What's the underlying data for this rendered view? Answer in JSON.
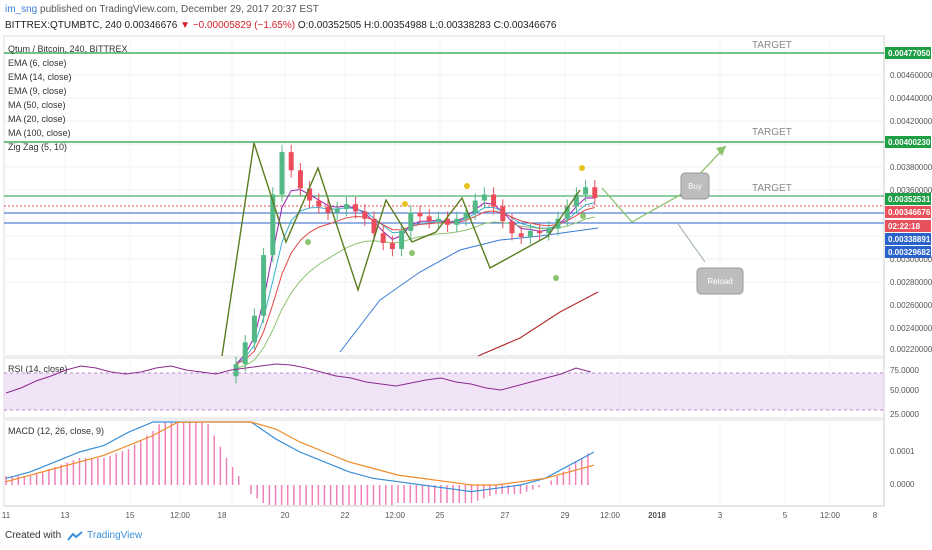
{
  "header": {
    "user": "im_sng",
    "published_text": " published on TradingView.com, December 29, 2017 20:37 EST",
    "symbol_line": "BITTREX:QTUMBTC, 240",
    "last": "0.00346676",
    "change": "▼ −0.00005829 (−1.65%)",
    "ohlc": "O:0.00352505 H:0.00354988 L:0.00338283 C:0.00346676"
  },
  "legend": [
    "Qtum / Bitcoin, 240, BITTREX",
    "EMA (6, close)",
    "EMA (14, close)",
    "EMA (9, close)",
    "MA (50, close)",
    "MA (20, close)",
    "MA (100, close)",
    "Zig Zag (5, 10)"
  ],
  "annotations": {
    "target": "TARGET",
    "buy": "Buy",
    "reload": "Reload"
  },
  "price_axis": {
    "ticks": [
      "0.00460000",
      "0.00440000",
      "0.00420000",
      "0.00380000",
      "0.00360000",
      "0.00300000",
      "0.00280000",
      "0.00260000",
      "0.00240000",
      "0.00220000"
    ],
    "labels": [
      {
        "text": "0.00477050",
        "color": "#1e9e45"
      },
      {
        "text": "0.00400230",
        "color": "#1e9e45"
      },
      {
        "text": "0.00352531",
        "color": "#1e9e45"
      },
      {
        "text": "0.00346676",
        "color": "#e8505b"
      },
      {
        "text": "02:22:18",
        "color": "#e8505b"
      },
      {
        "text": "0.00338891",
        "color": "#2962c9"
      },
      {
        "text": "0.00329682",
        "color": "#2962c9"
      }
    ]
  },
  "rsi": {
    "label": "RSI (14, close)",
    "ticks": [
      "75.0000",
      "50.0000",
      "25.0000"
    ]
  },
  "macd": {
    "label": "MACD (12, 26, close, 9)",
    "ticks": [
      "0.0001",
      "0.0000"
    ]
  },
  "time_axis": [
    "11",
    "13",
    "15",
    "12:00",
    "18",
    "20",
    "22",
    "12:00",
    "25",
    "27",
    "29",
    "12:00",
    "2018",
    "3",
    "5",
    "12:00",
    "8"
  ],
  "footer": {
    "created": "Created with",
    "brand": "TradingView"
  },
  "chart_data": {
    "type": "candlestick",
    "symbol": "QTUMBTC",
    "interval": "240",
    "levels": {
      "target_1": 0.0047705,
      "target_2": 0.0040023,
      "target_3": 0.00352531,
      "last": 0.00346676,
      "support_1": 0.00338891,
      "support_2": 0.00329682
    },
    "close_series": [
      0.0021,
      0.00228,
      0.0025,
      0.003,
      0.0035,
      0.00385,
      0.0037,
      0.00355,
      0.00345,
      0.0034,
      0.00335,
      0.00338,
      0.00342,
      0.00336,
      0.0033,
      0.00318,
      0.0031,
      0.00305,
      0.0032,
      0.00335,
      0.00332,
      0.00328,
      0.0033,
      0.00325,
      0.0033,
      0.00335,
      0.00345,
      0.0035,
      0.0034,
      0.00328,
      0.00318,
      0.00315,
      0.0032,
      0.00318,
      0.00322,
      0.0033,
      0.0034,
      0.0035,
      0.00356,
      0.00347
    ],
    "rsi_series": [
      45,
      50,
      57,
      62,
      68,
      72,
      70,
      66,
      64,
      66,
      70,
      72,
      68,
      66,
      64,
      68,
      70,
      72,
      74,
      73,
      70,
      66,
      62,
      60,
      56,
      54,
      52,
      55,
      58,
      60,
      56,
      54,
      50,
      48,
      52,
      56,
      60,
      64,
      70,
      66
    ],
    "macd_line": [
      2e-05,
      4e-05,
      7e-05,
      0.0001,
      0.00012,
      0.00016,
      0.00021,
      0.00028,
      0.0003,
      0.00026,
      0.0002,
      0.00014,
      0.0001,
      7e-05,
      4e-05,
      2e-05,
      1e-05,
      0.0,
      -1e-05,
      -2e-05,
      -1e-05,
      0.0,
      2e-05,
      6e-05,
      0.0001
    ],
    "signal_line": [
      1e-05,
      3e-05,
      5e-05,
      7e-05,
      9e-05,
      0.00012,
      0.00015,
      0.00019,
      0.00022,
      0.00023,
      0.00021,
      0.00017,
      0.00013,
      0.0001,
      7e-05,
      5e-05,
      3e-05,
      2e-05,
      1e-05,
      0.0,
      0.0,
      1e-05,
      2e-05,
      4e-05,
      6e-05
    ],
    "colors": {
      "up": "#53b987",
      "down": "#eb4d5c",
      "zigzag": "#5a7d1f",
      "ema6": "#9b1fb3",
      "ema14": "#e04848",
      "ema9": "#3ab0c8",
      "ma50": "#3a7bd5",
      "ma20": "#8dc26f",
      "ma100": "#b22c2c",
      "target_line": "#1e9e45",
      "rsi_line": "#8b2a8f",
      "rsi_band": "#e8d2f0",
      "macd": "#3a8fd8",
      "signal": "#f08a28",
      "hist": "#f080b8",
      "arrow": "#8dc26f",
      "buy_dot": "#e8c21c"
    }
  }
}
